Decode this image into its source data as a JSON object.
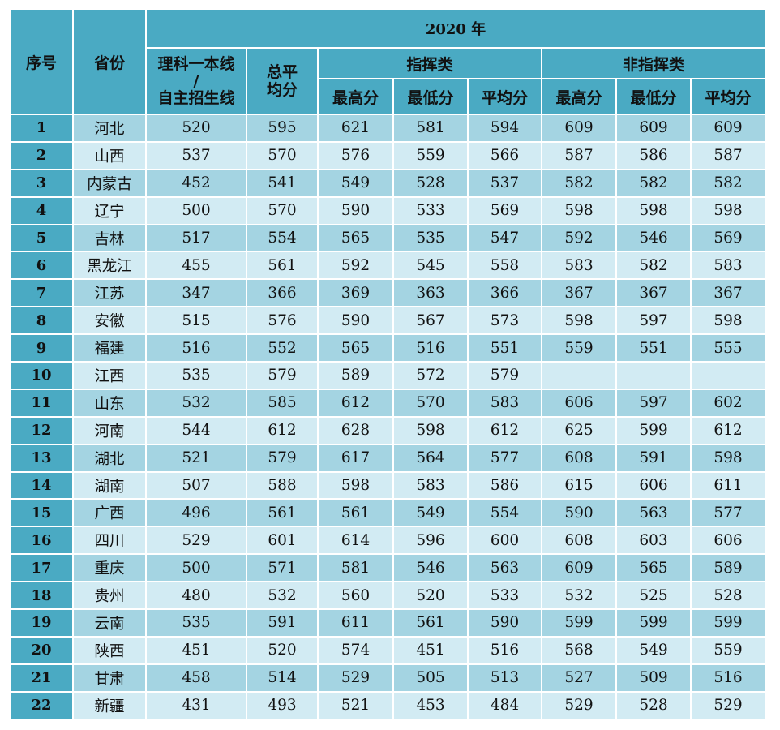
{
  "header": {
    "idx": "序号",
    "province": "省份",
    "year": "2020 年",
    "line_top": "理科一本线",
    "line_slash": "/",
    "line_bottom": "自主招生线",
    "total_avg_1": "总平",
    "total_avg_2": "均分",
    "command": "指挥类",
    "non_command": "非指挥类",
    "max": "最高分",
    "min": "最低分",
    "avg": "平均分"
  },
  "rows": [
    [
      "1",
      "河北",
      "520",
      "595",
      "621",
      "581",
      "594",
      "609",
      "609",
      "609"
    ],
    [
      "2",
      "山西",
      "537",
      "570",
      "576",
      "559",
      "566",
      "587",
      "586",
      "587"
    ],
    [
      "3",
      "内蒙古",
      "452",
      "541",
      "549",
      "528",
      "537",
      "582",
      "582",
      "582"
    ],
    [
      "4",
      "辽宁",
      "500",
      "570",
      "590",
      "533",
      "569",
      "598",
      "598",
      "598"
    ],
    [
      "5",
      "吉林",
      "517",
      "554",
      "565",
      "535",
      "547",
      "592",
      "546",
      "569"
    ],
    [
      "6",
      "黑龙江",
      "455",
      "561",
      "592",
      "545",
      "558",
      "583",
      "582",
      "583"
    ],
    [
      "7",
      "江苏",
      "347",
      "366",
      "369",
      "363",
      "366",
      "367",
      "367",
      "367"
    ],
    [
      "8",
      "安徽",
      "515",
      "576",
      "590",
      "567",
      "573",
      "598",
      "597",
      "598"
    ],
    [
      "9",
      "福建",
      "516",
      "552",
      "565",
      "516",
      "551",
      "559",
      "551",
      "555"
    ],
    [
      "10",
      "江西",
      "535",
      "579",
      "589",
      "572",
      "579",
      "",
      "",
      ""
    ],
    [
      "11",
      "山东",
      "532",
      "585",
      "612",
      "570",
      "583",
      "606",
      "597",
      "602"
    ],
    [
      "12",
      "河南",
      "544",
      "612",
      "628",
      "598",
      "612",
      "625",
      "599",
      "612"
    ],
    [
      "13",
      "湖北",
      "521",
      "579",
      "617",
      "564",
      "577",
      "608",
      "591",
      "598"
    ],
    [
      "14",
      "湖南",
      "507",
      "588",
      "598",
      "583",
      "586",
      "615",
      "606",
      "611"
    ],
    [
      "15",
      "广西",
      "496",
      "561",
      "561",
      "549",
      "554",
      "590",
      "563",
      "577"
    ],
    [
      "16",
      "四川",
      "529",
      "601",
      "614",
      "596",
      "600",
      "608",
      "603",
      "606"
    ],
    [
      "17",
      "重庆",
      "500",
      "571",
      "581",
      "546",
      "563",
      "609",
      "565",
      "589"
    ],
    [
      "18",
      "贵州",
      "480",
      "532",
      "560",
      "520",
      "533",
      "532",
      "525",
      "528"
    ],
    [
      "19",
      "云南",
      "535",
      "591",
      "611",
      "561",
      "590",
      "599",
      "599",
      "599"
    ],
    [
      "20",
      "陕西",
      "451",
      "520",
      "574",
      "451",
      "516",
      "568",
      "549",
      "559"
    ],
    [
      "21",
      "甘肃",
      "458",
      "514",
      "529",
      "505",
      "513",
      "527",
      "509",
      "516"
    ],
    [
      "22",
      "新疆",
      "431",
      "493",
      "521",
      "453",
      "484",
      "529",
      "528",
      "529"
    ]
  ]
}
